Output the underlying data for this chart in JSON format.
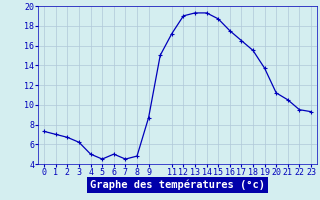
{
  "hours": [
    0,
    1,
    2,
    3,
    4,
    5,
    6,
    7,
    8,
    9,
    10,
    11,
    12,
    13,
    14,
    15,
    16,
    17,
    18,
    19,
    20,
    21,
    22,
    23
  ],
  "temperatures": [
    7.3,
    7.0,
    6.7,
    6.2,
    5.0,
    4.5,
    5.0,
    4.5,
    4.8,
    8.7,
    15.0,
    17.2,
    19.0,
    19.3,
    19.3,
    18.7,
    17.5,
    16.5,
    15.5,
    13.7,
    11.2,
    10.5,
    9.5,
    9.3
  ],
  "line_color": "#0000bb",
  "marker": "+",
  "marker_size": 3,
  "marker_linewidth": 0.8,
  "line_width": 0.9,
  "background_color": "#d4eef0",
  "grid_color": "#b0c8d8",
  "xlabel": "Graphe des températures (°c)",
  "xlabel_color": "#ffffff",
  "xlabel_bg": "#0000aa",
  "ylim": [
    4,
    20
  ],
  "yticks": [
    4,
    6,
    8,
    10,
    12,
    14,
    16,
    18,
    20
  ],
  "xlim": [
    -0.5,
    23.5
  ],
  "xticks": [
    0,
    1,
    2,
    3,
    4,
    5,
    6,
    7,
    8,
    9,
    11,
    12,
    13,
    14,
    15,
    16,
    17,
    18,
    19,
    20,
    21,
    22,
    23
  ],
  "tick_color": "#0000bb",
  "tick_fontsize": 6,
  "xlabel_fontsize": 7.5
}
